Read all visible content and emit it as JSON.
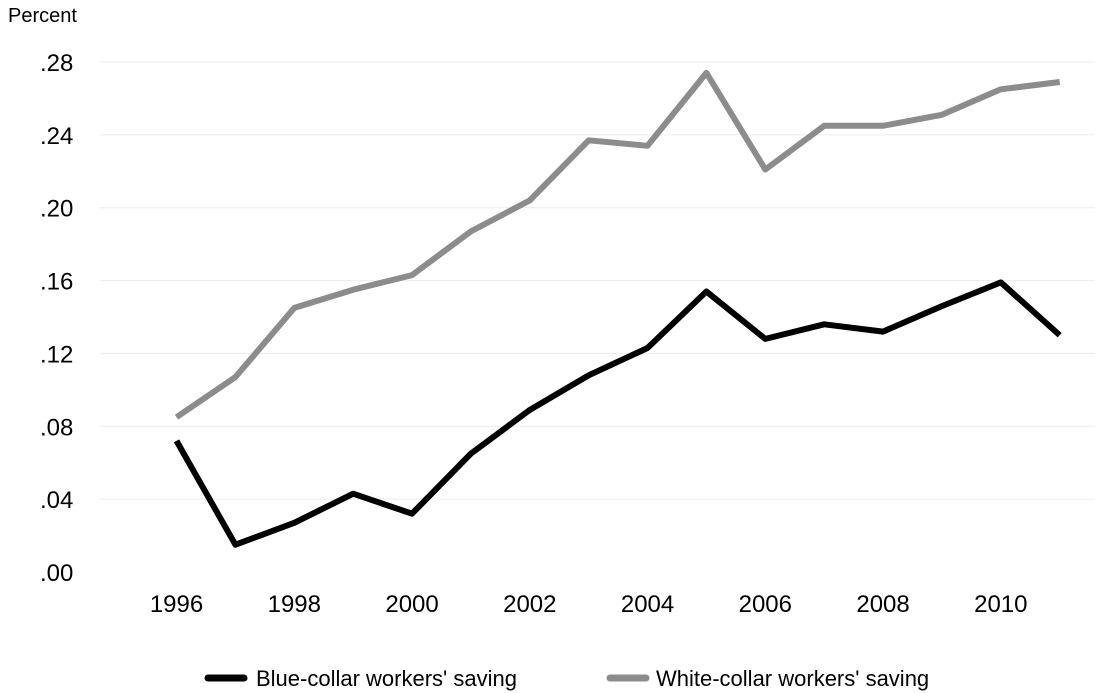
{
  "chart_data": {
    "type": "line",
    "title": "",
    "xlabel": "",
    "ylabel": "Percent",
    "x": [
      1996,
      1997,
      1998,
      1999,
      2000,
      2001,
      2002,
      2003,
      2004,
      2005,
      2006,
      2007,
      2008,
      2009,
      2010,
      2011
    ],
    "xlim": [
      1994.7,
      2011.6
    ],
    "ylim": [
      0,
      0.28
    ],
    "grid": true,
    "legend_position": "bottom",
    "x_ticks": [
      {
        "value": 1996,
        "label": "1996"
      },
      {
        "value": 1998,
        "label": "1998"
      },
      {
        "value": 2000,
        "label": "2000"
      },
      {
        "value": 2002,
        "label": "2002"
      },
      {
        "value": 2004,
        "label": "2004"
      },
      {
        "value": 2006,
        "label": "2006"
      },
      {
        "value": 2008,
        "label": "2008"
      },
      {
        "value": 2010,
        "label": "2010"
      }
    ],
    "y_ticks": [
      {
        "value": 0.0,
        "label": ".00"
      },
      {
        "value": 0.04,
        "label": ".04"
      },
      {
        "value": 0.08,
        "label": ".08"
      },
      {
        "value": 0.12,
        "label": ".12"
      },
      {
        "value": 0.16,
        "label": ".16"
      },
      {
        "value": 0.2,
        "label": ".20"
      },
      {
        "value": 0.24,
        "label": ".24"
      },
      {
        "value": 0.28,
        "label": ".28"
      }
    ],
    "series": [
      {
        "name": "Blue-collar workers' saving",
        "color": "#000000",
        "values": [
          0.072,
          0.015,
          0.027,
          0.043,
          0.032,
          0.065,
          0.089,
          0.108,
          0.123,
          0.154,
          0.128,
          0.136,
          0.132,
          0.146,
          0.159,
          0.13
        ]
      },
      {
        "name": "White-collar workers' saving",
        "color": "#8c8c8c",
        "values": [
          0.085,
          0.107,
          0.145,
          0.155,
          0.163,
          0.187,
          0.204,
          0.237,
          0.234,
          0.274,
          0.221,
          0.245,
          0.245,
          0.251,
          0.265,
          0.269
        ]
      }
    ]
  }
}
